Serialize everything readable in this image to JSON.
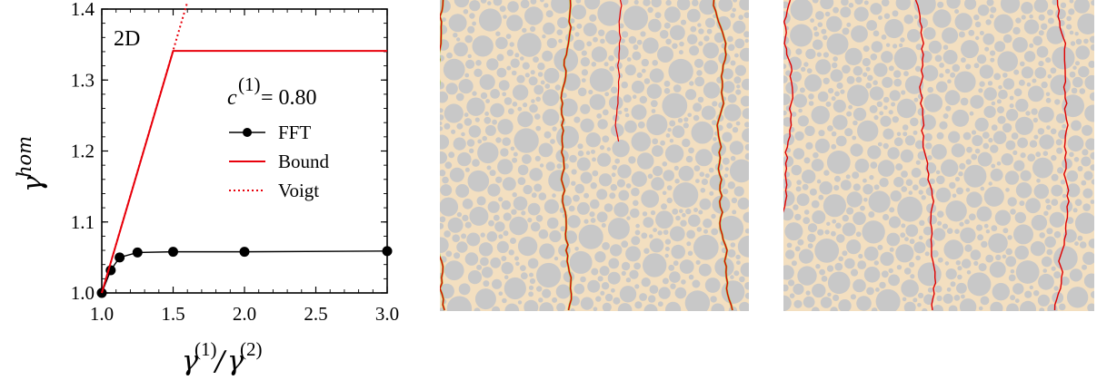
{
  "chart_data": {
    "type": "line",
    "panel_label": "2D",
    "annotation": "c^(1) = 0.80",
    "xlabel": "γ^(1)/γ^(2)",
    "ylabel": "γ^hom",
    "xlim": [
      1.0,
      3.0
    ],
    "ylim": [
      1.0,
      1.4
    ],
    "x_ticks": [
      "1.0",
      "1.5",
      "2.0",
      "2.5",
      "3.0"
    ],
    "y_ticks": [
      "1.0",
      "1.1",
      "1.2",
      "1.3",
      "1.4"
    ],
    "legend_position": "right",
    "series": [
      {
        "name": "FFT",
        "style": "solid-markers",
        "color": "#000000",
        "x": [
          1.0,
          1.0625,
          1.125,
          1.25,
          1.5,
          2.0,
          3.0
        ],
        "y": [
          1.0,
          1.032,
          1.05,
          1.057,
          1.058,
          1.058,
          1.059
        ]
      },
      {
        "name": "Bound",
        "style": "solid",
        "color": "#e8000b",
        "x": [
          1.0,
          1.5,
          3.0
        ],
        "y": [
          1.0,
          1.341,
          1.341
        ]
      },
      {
        "name": "Voigt",
        "style": "dotted",
        "color": "#e8000b",
        "x": [
          1.0,
          1.6
        ],
        "y": [
          1.0,
          1.41
        ]
      }
    ]
  },
  "microstructure_images": [
    {
      "name": "crack-pattern-fft",
      "background": "#f3dfc0",
      "inclusion_color": "#c8c8c8",
      "crack_color": "#e00000",
      "secondary_color": "#a8d050"
    },
    {
      "name": "crack-pattern-bound",
      "background": "#f3dfc0",
      "inclusion_color": "#c8c8c8",
      "crack_color": "#e00000"
    }
  ]
}
